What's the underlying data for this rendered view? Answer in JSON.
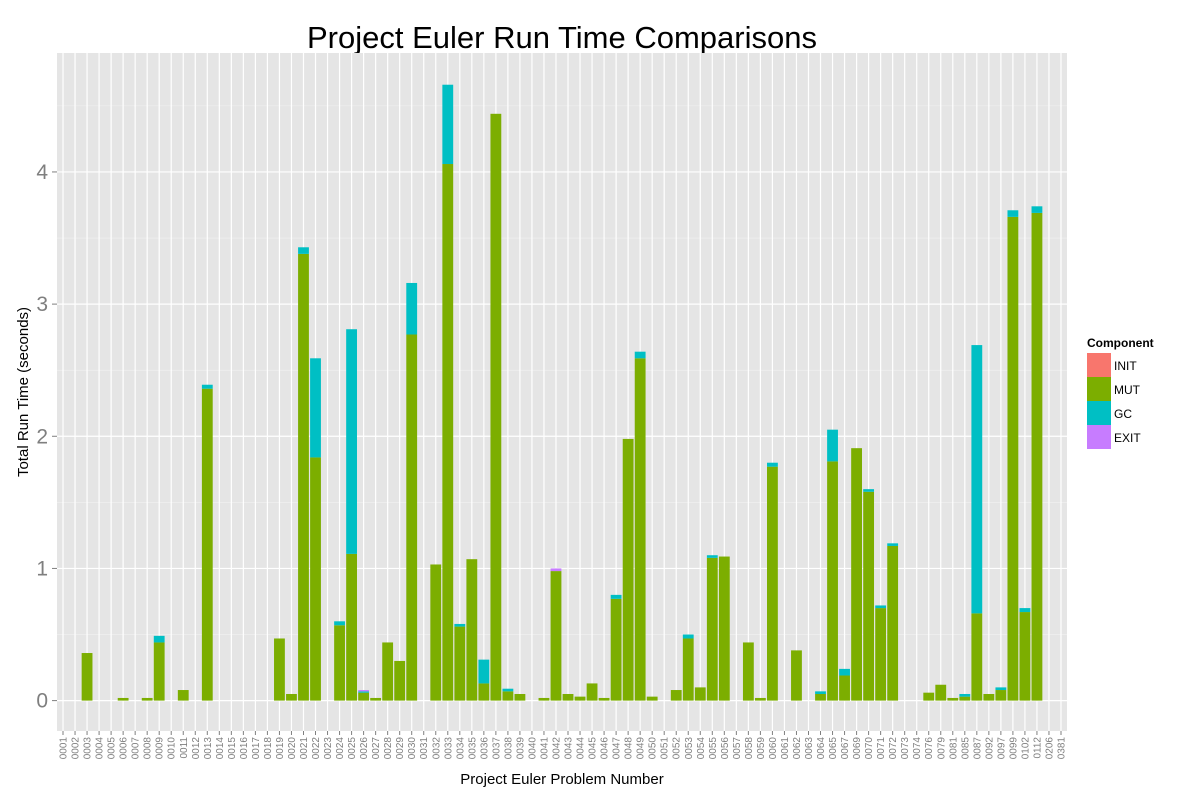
{
  "chart_data": {
    "type": "bar",
    "stacked": true,
    "title": "Project Euler Run Time Comparisons",
    "xlabel": "Project Euler Problem Number",
    "ylabel": "Total Run Time (seconds)",
    "ylim": [
      -0.23,
      4.9
    ],
    "yticks": [
      0,
      1,
      2,
      3,
      4
    ],
    "grid": true,
    "legend": {
      "title": "Component",
      "position": "right"
    },
    "colors": {
      "INIT": "#F8766D",
      "MUT": "#7CAE00",
      "GC": "#00BFC4",
      "EXIT": "#C77CFF"
    },
    "categories": [
      "0001",
      "0002",
      "0003",
      "0004",
      "0005",
      "0006",
      "0007",
      "0008",
      "0009",
      "0010",
      "0011",
      "0012",
      "0013",
      "0014",
      "0015",
      "0016",
      "0017",
      "0018",
      "0019",
      "0020",
      "0021",
      "0022",
      "0023",
      "0024",
      "0025",
      "0026",
      "0027",
      "0028",
      "0029",
      "0030",
      "0031",
      "0032",
      "0033",
      "0034",
      "0035",
      "0036",
      "0037",
      "0038",
      "0039",
      "0040",
      "0041",
      "0042",
      "0043",
      "0044",
      "0045",
      "0046",
      "0047",
      "0048",
      "0049",
      "0050",
      "0051",
      "0052",
      "0053",
      "0054",
      "0055",
      "0056",
      "0057",
      "0058",
      "0059",
      "0060",
      "0061",
      "0062",
      "0063",
      "0064",
      "0065",
      "0067",
      "0069",
      "0070",
      "0071",
      "0072",
      "0073",
      "0074",
      "0076",
      "0079",
      "0081",
      "0085",
      "0087",
      "0092",
      "0097",
      "0099",
      "0102",
      "0112",
      "0206",
      "0381"
    ],
    "series": [
      {
        "name": "INIT",
        "values": [
          0,
          0,
          0,
          0,
          0,
          0,
          0,
          0,
          0,
          0,
          0,
          0,
          0,
          0,
          0,
          0,
          0,
          0,
          0,
          0,
          0,
          0,
          0,
          0,
          0,
          0,
          0,
          0,
          0,
          0,
          0,
          0,
          0,
          0,
          0,
          0,
          0,
          0,
          0,
          0,
          0,
          0,
          0,
          0,
          0,
          0,
          0,
          0,
          0,
          0,
          0,
          0,
          0,
          0,
          0,
          0,
          0,
          0,
          0,
          0,
          0,
          0,
          0,
          0,
          0,
          0,
          0,
          0,
          0,
          0,
          0,
          0,
          0,
          0,
          0,
          0,
          0,
          0,
          0,
          0,
          0,
          0,
          0,
          0
        ]
      },
      {
        "name": "MUT",
        "values": [
          0,
          0,
          0.36,
          0,
          0,
          0.02,
          0,
          0.02,
          0.44,
          0,
          0.08,
          0,
          2.36,
          0,
          0,
          0,
          0,
          0,
          0.47,
          0.05,
          3.38,
          1.84,
          0,
          0.57,
          1.11,
          0.06,
          0.02,
          0.44,
          0.3,
          2.77,
          0,
          1.03,
          4.06,
          0.56,
          1.07,
          0.13,
          4.44,
          0.07,
          0.05,
          0,
          0.02,
          0.98,
          0.05,
          0.03,
          0.13,
          0.02,
          0.77,
          1.98,
          2.59,
          0.03,
          0,
          0.08,
          0.47,
          0.1,
          1.08,
          1.09,
          0,
          0.44,
          0.02,
          1.77,
          0,
          0.38,
          0,
          0.05,
          1.81,
          0.19,
          1.91,
          1.58,
          0.7,
          1.17,
          0,
          0,
          0.06,
          0.12,
          0.02,
          0.03,
          0.66,
          0.05,
          0.08,
          3.66,
          0.67,
          3.69,
          0,
          0
        ]
      },
      {
        "name": "GC",
        "values": [
          0,
          0,
          0,
          0,
          0,
          0,
          0,
          0,
          0.05,
          0,
          0,
          0,
          0.03,
          0,
          0,
          0,
          0,
          0,
          0,
          0,
          0.05,
          0.75,
          0,
          0.03,
          1.7,
          0.01,
          0,
          0,
          0,
          0.39,
          0,
          0,
          0.6,
          0.02,
          0,
          0.18,
          0,
          0.02,
          0,
          0,
          0,
          0,
          0,
          0,
          0,
          0,
          0.03,
          0,
          0.05,
          0,
          0,
          0,
          0.03,
          0,
          0.02,
          0,
          0,
          0,
          0,
          0.03,
          0,
          0,
          0,
          0.02,
          0.24,
          0.05,
          0,
          0.02,
          0.02,
          0.02,
          0,
          0,
          0,
          0,
          0,
          0.02,
          2.03,
          0,
          0.02,
          0.05,
          0.03,
          0.05,
          0,
          0
        ]
      },
      {
        "name": "EXIT",
        "values": [
          0,
          0,
          0,
          0,
          0,
          0,
          0,
          0,
          0,
          0,
          0,
          0,
          0,
          0,
          0,
          0,
          0,
          0,
          0,
          0,
          0,
          0,
          0,
          0,
          0,
          0.01,
          0,
          0,
          0,
          0,
          0,
          0,
          0,
          0,
          0,
          0,
          0,
          0,
          0,
          0,
          0,
          0.02,
          0,
          0,
          0,
          0,
          0,
          0,
          0,
          0,
          0,
          0,
          0,
          0,
          0,
          0,
          0,
          0,
          0,
          0,
          0,
          0,
          0,
          0,
          0,
          0,
          0,
          0,
          0,
          0,
          0,
          0,
          0,
          0,
          0,
          0,
          0,
          0,
          0,
          0,
          0,
          0,
          0,
          0
        ]
      }
    ]
  }
}
